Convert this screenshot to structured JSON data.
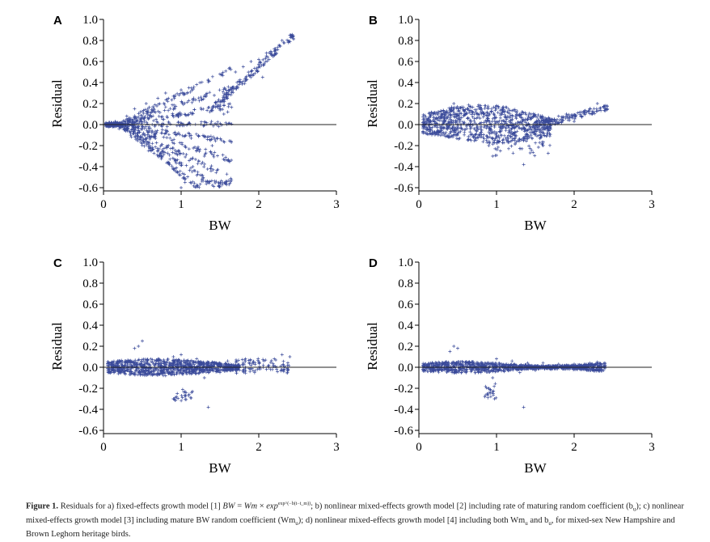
{
  "figure": {
    "panels": [
      "A",
      "B",
      "C",
      "D"
    ]
  },
  "chart_data": [
    {
      "type": "scatter",
      "panel": "A",
      "xlabel": "BW",
      "ylabel": "Residual",
      "xlim": [
        0,
        3
      ],
      "ylim": [
        -0.6,
        1.0
      ],
      "xticks": [
        "0",
        "1",
        "2",
        "3"
      ],
      "yticks": [
        "-0.6",
        "-0.4",
        "-0.2",
        "0.0",
        "0.2",
        "0.4",
        "0.6",
        "0.8",
        "1.0"
      ],
      "series_color": "#3a4a9a",
      "reference_line": 0.0,
      "pattern": "fan",
      "points": [
        [
          0.05,
          0.0
        ],
        [
          0.1,
          0.01
        ],
        [
          0.12,
          -0.02
        ],
        [
          0.15,
          0.03
        ],
        [
          0.2,
          -0.04
        ],
        [
          0.3,
          0.08
        ],
        [
          0.35,
          -0.1
        ],
        [
          0.4,
          0.15
        ],
        [
          0.5,
          -0.15
        ],
        [
          0.55,
          0.2
        ],
        [
          0.6,
          -0.22
        ],
        [
          0.7,
          0.25
        ],
        [
          0.75,
          -0.3
        ],
        [
          0.8,
          0.3
        ],
        [
          0.85,
          -0.38
        ],
        [
          0.9,
          0.27
        ],
        [
          0.95,
          -0.45
        ],
        [
          1.0,
          -0.6
        ],
        [
          1.0,
          0.33
        ],
        [
          1.05,
          -0.55
        ],
        [
          1.1,
          0.35
        ],
        [
          1.15,
          -0.4
        ],
        [
          1.2,
          0.38
        ],
        [
          1.3,
          -0.3
        ],
        [
          1.35,
          0.42
        ],
        [
          1.4,
          -0.2
        ],
        [
          1.5,
          0.48
        ],
        [
          1.55,
          0.1
        ],
        [
          1.6,
          0.12
        ],
        [
          1.7,
          0.5
        ],
        [
          1.8,
          0.55
        ],
        [
          1.9,
          0.6
        ],
        [
          2.0,
          0.62
        ],
        [
          2.05,
          0.45
        ],
        [
          2.1,
          0.68
        ],
        [
          2.2,
          0.72
        ],
        [
          2.3,
          0.8
        ],
        [
          2.4,
          0.85
        ]
      ]
    },
    {
      "type": "scatter",
      "panel": "B",
      "xlabel": "BW",
      "ylabel": "Residual",
      "xlim": [
        0,
        3
      ],
      "ylim": [
        -0.6,
        1.0
      ],
      "xticks": [
        "0",
        "1",
        "2",
        "3"
      ],
      "yticks": [
        "-0.6",
        "-0.4",
        "-0.2",
        "0.0",
        "0.2",
        "0.4",
        "0.6",
        "0.8",
        "1.0"
      ],
      "series_color": "#3a4a9a",
      "reference_line": 0.0,
      "pattern": "band",
      "points": [
        [
          0.05,
          0.0
        ],
        [
          0.1,
          -0.05
        ],
        [
          0.2,
          0.03
        ],
        [
          0.3,
          -0.08
        ],
        [
          0.4,
          0.12
        ],
        [
          0.45,
          0.2
        ],
        [
          0.5,
          -0.1
        ],
        [
          0.6,
          0.1
        ],
        [
          0.7,
          -0.12
        ],
        [
          0.8,
          0.15
        ],
        [
          0.9,
          -0.2
        ],
        [
          0.95,
          -0.3
        ],
        [
          1.0,
          0.18
        ],
        [
          1.05,
          -0.25
        ],
        [
          1.1,
          0.12
        ],
        [
          1.2,
          -0.15
        ],
        [
          1.3,
          0.1
        ],
        [
          1.35,
          -0.38
        ],
        [
          1.4,
          -0.1
        ],
        [
          1.5,
          0.08
        ],
        [
          1.6,
          -0.2
        ],
        [
          1.7,
          0.05
        ],
        [
          1.8,
          0.08
        ],
        [
          1.9,
          0.1
        ],
        [
          2.0,
          0.03
        ],
        [
          2.1,
          0.08
        ],
        [
          2.2,
          0.15
        ],
        [
          2.3,
          0.2
        ],
        [
          2.4,
          0.18
        ]
      ]
    },
    {
      "type": "scatter",
      "panel": "C",
      "xlabel": "BW",
      "ylabel": "Residual",
      "xlim": [
        0,
        3
      ],
      "ylim": [
        -0.6,
        1.0
      ],
      "xticks": [
        "0",
        "1",
        "2",
        "3"
      ],
      "yticks": [
        "-0.6",
        "-0.4",
        "-0.2",
        "0.0",
        "0.2",
        "0.4",
        "0.6",
        "0.8",
        "1.0"
      ],
      "series_color": "#3a4a9a",
      "reference_line": 0.0,
      "pattern": "narrow",
      "points": [
        [
          0.05,
          0.0
        ],
        [
          0.1,
          0.02
        ],
        [
          0.2,
          -0.03
        ],
        [
          0.3,
          0.05
        ],
        [
          0.4,
          0.18
        ],
        [
          0.45,
          0.2
        ],
        [
          0.5,
          0.25
        ],
        [
          0.6,
          -0.05
        ],
        [
          0.7,
          0.08
        ],
        [
          0.8,
          -0.08
        ],
        [
          0.9,
          0.1
        ],
        [
          0.9,
          -0.3
        ],
        [
          0.95,
          -0.25
        ],
        [
          1.0,
          0.12
        ],
        [
          1.1,
          -0.05
        ],
        [
          1.2,
          0.08
        ],
        [
          1.3,
          -0.1
        ],
        [
          1.35,
          -0.38
        ],
        [
          1.4,
          0.05
        ],
        [
          1.5,
          -0.05
        ],
        [
          1.6,
          0.06
        ],
        [
          1.7,
          -0.03
        ],
        [
          1.8,
          0.04
        ],
        [
          1.9,
          0.02
        ],
        [
          2.0,
          0.05
        ],
        [
          2.1,
          -0.02
        ],
        [
          2.2,
          0.08
        ],
        [
          2.3,
          0.12
        ],
        [
          2.4,
          0.1
        ]
      ]
    },
    {
      "type": "scatter",
      "panel": "D",
      "xlabel": "BW",
      "ylabel": "Residual",
      "xlim": [
        0,
        3
      ],
      "ylim": [
        -0.6,
        1.0
      ],
      "xticks": [
        "0",
        "1",
        "2",
        "3"
      ],
      "yticks": [
        "-0.6",
        "-0.4",
        "-0.2",
        "0.0",
        "0.2",
        "0.4",
        "0.6",
        "0.8",
        "1.0"
      ],
      "series_color": "#3a4a9a",
      "reference_line": 0.0,
      "pattern": "tight",
      "points": [
        [
          0.05,
          0.0
        ],
        [
          0.1,
          0.01
        ],
        [
          0.2,
          -0.02
        ],
        [
          0.3,
          0.03
        ],
        [
          0.4,
          0.15
        ],
        [
          0.45,
          0.2
        ],
        [
          0.5,
          0.18
        ],
        [
          0.6,
          -0.04
        ],
        [
          0.7,
          0.05
        ],
        [
          0.8,
          -0.05
        ],
        [
          0.85,
          -0.28
        ],
        [
          0.9,
          -0.2
        ],
        [
          0.95,
          -0.1
        ],
        [
          1.0,
          0.08
        ],
        [
          1.1,
          -0.04
        ],
        [
          1.2,
          0.06
        ],
        [
          1.3,
          -0.05
        ],
        [
          1.35,
          -0.38
        ],
        [
          1.4,
          0.04
        ],
        [
          1.5,
          -0.03
        ],
        [
          1.6,
          0.04
        ],
        [
          1.7,
          -0.02
        ],
        [
          1.8,
          0.03
        ],
        [
          1.9,
          0.02
        ],
        [
          2.0,
          0.03
        ],
        [
          2.1,
          -0.02
        ],
        [
          2.2,
          0.04
        ],
        [
          2.3,
          0.05
        ],
        [
          2.4,
          0.02
        ]
      ]
    }
  ],
  "caption": {
    "label": "Figure 1.",
    "text_1": "Residuals for a) fixed-effects growth model [1]",
    "formula_bw": "BW",
    "formula_eq": " = ",
    "formula_wm": "Wm",
    "formula_times": " × ",
    "formula_exp": "exp",
    "formula_sup": "exp^(−b(t−t_m))",
    "text_2": "; b) nonlinear mixed-effects growth model [2] including rate of maturing random coefficient (b",
    "sub_u1": "u",
    "text_3": "); c) nonlinear mixed-effects growth model [3] including mature BW random coefficient (Wm",
    "sub_u2": "u",
    "text_4": "); d) nonlinear mixed-effects growth model [4] including both Wm",
    "sub_u3": "u",
    "text_5": " and b",
    "sub_u4": "u",
    "text_6": ", for mixed-sex New Hampshire and Brown Leghorn heritage birds."
  }
}
